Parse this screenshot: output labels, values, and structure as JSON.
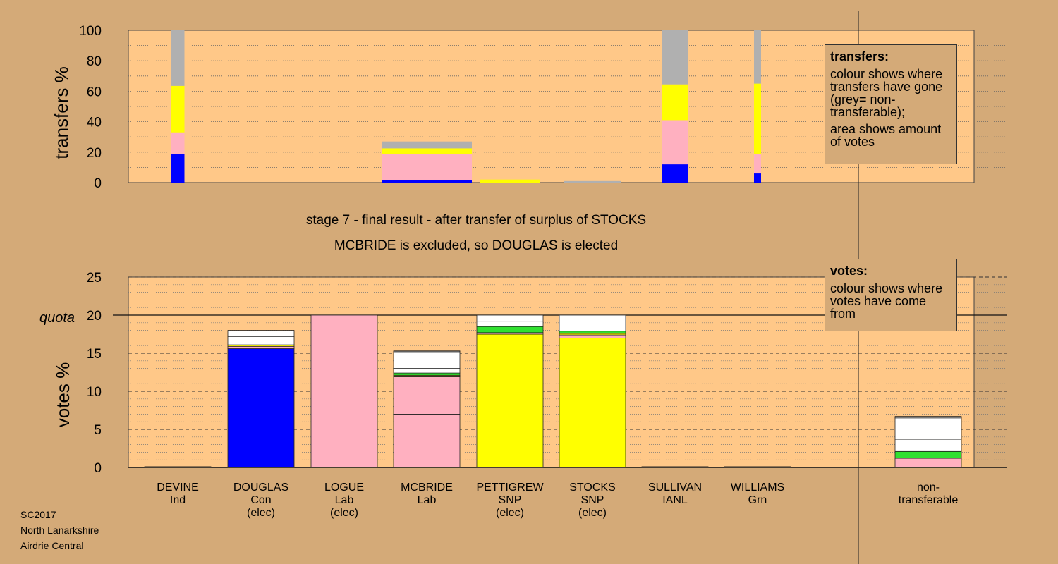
{
  "chart_data": [
    {
      "type": "bar",
      "stacked": true,
      "name": "transfers",
      "ylabel": "transfers %",
      "ylim": [
        0,
        100
      ],
      "yticks": [
        0,
        20,
        40,
        60,
        80,
        100
      ],
      "grid": "dotted horizontal every 10",
      "legend": {
        "title": "transfers:",
        "lines": [
          "colour shows where transfers have gone (grey= non-transferable);",
          "area shows amount of votes"
        ],
        "placement": "top-right"
      },
      "bars": [
        {
          "candidate": "DEVINE",
          "segments": [
            {
              "color": "#0000ff",
              "value": 19
            },
            {
              "color": "#ffb0c0",
              "value": 14
            },
            {
              "color": "#ffff00",
              "value": 30.5
            },
            {
              "color": "#b0b0b0",
              "value": 36.5
            }
          ]
        },
        {
          "candidate": "MCBRIDE",
          "segments": [
            {
              "color": "#0000ff",
              "value": 1.5
            },
            {
              "color": "#ffb0c0",
              "value": 17.5
            },
            {
              "color": "#ffff00",
              "value": 3.5
            },
            {
              "color": "#b0b0b0",
              "value": 4.5
            }
          ]
        },
        {
          "candidate": "PETTIGREW",
          "segments": [
            {
              "color": "#ffff00",
              "value": 2
            }
          ]
        },
        {
          "candidate": "STOCKS",
          "segments": [
            {
              "color": "#b0b0b0",
              "value": 1
            }
          ]
        },
        {
          "candidate": "SULLIVAN",
          "segments": [
            {
              "color": "#0000ff",
              "value": 12
            },
            {
              "color": "#ffb0c0",
              "value": 29
            },
            {
              "color": "#ffff00",
              "value": 23.5
            },
            {
              "color": "#b0b0b0",
              "value": 35.5
            }
          ]
        },
        {
          "candidate": "WILLIAMS",
          "segments": [
            {
              "color": "#0000ff",
              "value": 6
            },
            {
              "color": "#ffb0c0",
              "value": 13
            },
            {
              "color": "#ffff00",
              "value": 46
            },
            {
              "color": "#b0b0b0",
              "value": 35
            }
          ]
        }
      ]
    },
    {
      "type": "bar",
      "stacked": true,
      "name": "votes",
      "ylabel": "votes %",
      "ylim": [
        0,
        25
      ],
      "yticks": [
        0,
        5,
        10,
        15,
        20,
        25
      ],
      "quota": {
        "label": "quota",
        "value": 20
      },
      "grid": "dashed every 5, dotted every 1",
      "legend": {
        "title": "votes:",
        "lines": [
          "colour shows where votes have come from"
        ],
        "placement": "top-right"
      },
      "categories": [
        {
          "name": "DEVINE",
          "party": "Ind",
          "status": ""
        },
        {
          "name": "DOUGLAS",
          "party": "Con",
          "status": "(elec)"
        },
        {
          "name": "LOGUE",
          "party": "Lab",
          "status": "(elec)"
        },
        {
          "name": "MCBRIDE",
          "party": "Lab",
          "status": ""
        },
        {
          "name": "PETTIGREW",
          "party": "SNP",
          "status": "(elec)"
        },
        {
          "name": "STOCKS",
          "party": "SNP",
          "status": "(elec)"
        },
        {
          "name": "SULLIVAN",
          "party": "IANL",
          "status": ""
        },
        {
          "name": "WILLIAMS",
          "party": "Grn",
          "status": ""
        },
        {
          "name": "non-",
          "party": "transferable",
          "status": ""
        }
      ],
      "bars": [
        {
          "candidate": "DEVINE",
          "segments": [
            {
              "color": "#000000",
              "value": 0.1
            }
          ]
        },
        {
          "candidate": "DOUGLAS",
          "segments": [
            {
              "color": "#0000ff",
              "value": 15.6
            },
            {
              "color": "#ffb0c0",
              "value": 0.3
            },
            {
              "color": "#ffff00",
              "value": 0.2
            },
            {
              "color": "#ffffff",
              "value": 1.1
            },
            {
              "color": "#ffffff",
              "value": 0.8
            }
          ]
        },
        {
          "candidate": "LOGUE",
          "segments": [
            {
              "color": "#ffb0c0",
              "value": 20
            }
          ]
        },
        {
          "candidate": "MCBRIDE",
          "segments": [
            {
              "color": "#ffb0c0",
              "value": 7
            },
            {
              "color": "#ffb0c0",
              "value": 4.9
            },
            {
              "color": "#ffff00",
              "value": 0.2
            },
            {
              "color": "#30e030",
              "value": 0.3
            },
            {
              "color": "#ffffff",
              "value": 0.6
            },
            {
              "color": "#ffffff",
              "value": 2.2
            },
            {
              "color": "#ffffff",
              "value": 0.1
            }
          ]
        },
        {
          "candidate": "PETTIGREW",
          "segments": [
            {
              "color": "#ffff00",
              "value": 17.5
            },
            {
              "color": "#ffb0c0",
              "value": 0.2
            },
            {
              "color": "#30e030",
              "value": 0.8
            },
            {
              "color": "#ffffff",
              "value": 0.7
            },
            {
              "color": "#ffffff",
              "value": 0.8
            }
          ]
        },
        {
          "candidate": "STOCKS",
          "segments": [
            {
              "color": "#ffff00",
              "value": 17
            },
            {
              "color": "#ffb0c0",
              "value": 0.4
            },
            {
              "color": "#ffff00",
              "value": 0.2
            },
            {
              "color": "#30e030",
              "value": 0.3
            },
            {
              "color": "#ffffff",
              "value": 0.3
            },
            {
              "color": "#ffffff",
              "value": 1.3
            },
            {
              "color": "#ffffff",
              "value": 0.5
            }
          ]
        },
        {
          "candidate": "SULLIVAN",
          "segments": [
            {
              "color": "#000000",
              "value": 0.1
            }
          ]
        },
        {
          "candidate": "WILLIAMS",
          "segments": [
            {
              "color": "#000000",
              "value": 0.1
            }
          ]
        },
        {
          "candidate": "non-transferable",
          "segments": [
            {
              "color": "#ffb0c0",
              "value": 1.2
            },
            {
              "color": "#30e030",
              "value": 0.9
            },
            {
              "color": "#ffffff",
              "value": 1.6
            },
            {
              "color": "#ffffff",
              "value": 2.8
            },
            {
              "color": "#ffffff",
              "value": 0.2
            }
          ]
        }
      ]
    }
  ],
  "captions": {
    "line1": "stage 7 - final result - after transfer of surplus of STOCKS",
    "line2": "MCBRIDE is excluded, so DOUGLAS is elected"
  },
  "footer": [
    "SC2017",
    "North Lanarkshire",
    "Airdrie Central"
  ],
  "colors": {
    "background": "#d4aa78",
    "plot_background": "#ffc888",
    "con": "#0000ff",
    "lab": "#ffb0c0",
    "snp": "#ffff00",
    "grn": "#30e030",
    "non_transferable": "#b0b0b0"
  }
}
